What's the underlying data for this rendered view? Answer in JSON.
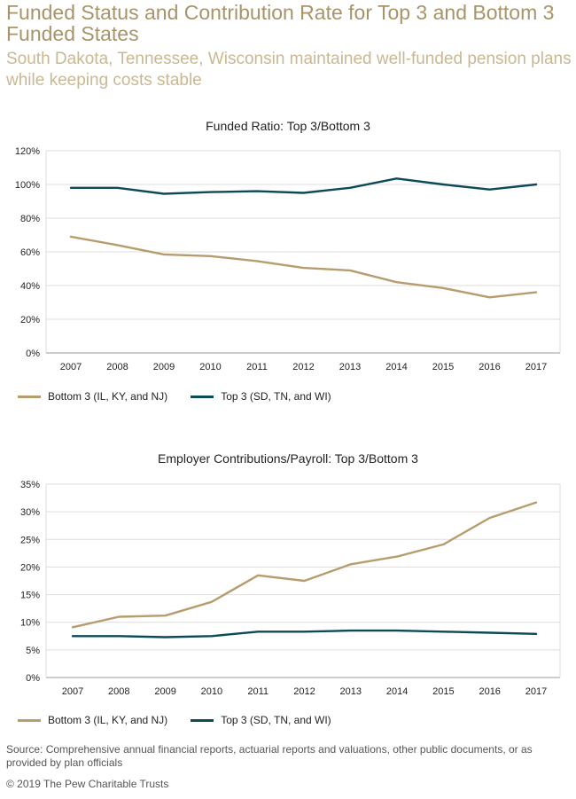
{
  "header": {
    "title": "Funded Status and Contribution Rate for Top 3 and Bottom 3 Funded States",
    "subtitle": "South Dakota, Tennessee, Wisconsin maintained well-funded pension plans while keeping costs stable"
  },
  "colors": {
    "bottom": "#b79d6d",
    "top": "#0d4a58",
    "grid": "#dddddd",
    "axis": "#999999",
    "title": "#a89468"
  },
  "chart_data": [
    {
      "type": "line",
      "title": "Funded Ratio: Top 3/Bottom 3",
      "x": [
        "2007",
        "2008",
        "2009",
        "2010",
        "2011",
        "2012",
        "2013",
        "2014",
        "2015",
        "2016",
        "2017"
      ],
      "y_ticks": [
        "0%",
        "20%",
        "40%",
        "60%",
        "80%",
        "100%",
        "120%"
      ],
      "ylim": [
        0,
        120
      ],
      "grid": true,
      "legend_position": "bottom-left",
      "series": [
        {
          "name": "Bottom 3 (IL, KY, and NJ)",
          "values": [
            69,
            64,
            58.5,
            57.5,
            54.5,
            50.5,
            49,
            42,
            38.5,
            33,
            36
          ]
        },
        {
          "name": "Top 3 (SD, TN, and WI)",
          "values": [
            98,
            98,
            94.5,
            95.5,
            96,
            95,
            98,
            103.5,
            100,
            97,
            100
          ]
        }
      ]
    },
    {
      "type": "line",
      "title": "Employer Contributions/Payroll: Top 3/Bottom 3",
      "x": [
        "2007",
        "2008",
        "2009",
        "2010",
        "2011",
        "2012",
        "2013",
        "2014",
        "2015",
        "2016",
        "2017"
      ],
      "y_ticks": [
        "0%",
        "5%",
        "10%",
        "15%",
        "20%",
        "25%",
        "30%",
        "35%"
      ],
      "ylim": [
        0,
        35
      ],
      "grid": true,
      "legend_position": "bottom-left",
      "series": [
        {
          "name": "Bottom 3 (IL, KY, and NJ)",
          "values": [
            9.1,
            11,
            11.2,
            13.7,
            18.5,
            17.5,
            20.5,
            21.9,
            24.1,
            28.9,
            31.7
          ]
        },
        {
          "name": "Top 3 (SD, TN, and WI)",
          "values": [
            7.5,
            7.5,
            7.3,
            7.5,
            8.3,
            8.3,
            8.5,
            8.5,
            8.3,
            8.1,
            7.9
          ]
        }
      ]
    }
  ],
  "footer": {
    "source": "Source: Comprehensive annual financial reports, actuarial reports and valuations, other public documents, or as provided by plan officials",
    "copyright": "© 2019 The Pew Charitable Trusts"
  }
}
